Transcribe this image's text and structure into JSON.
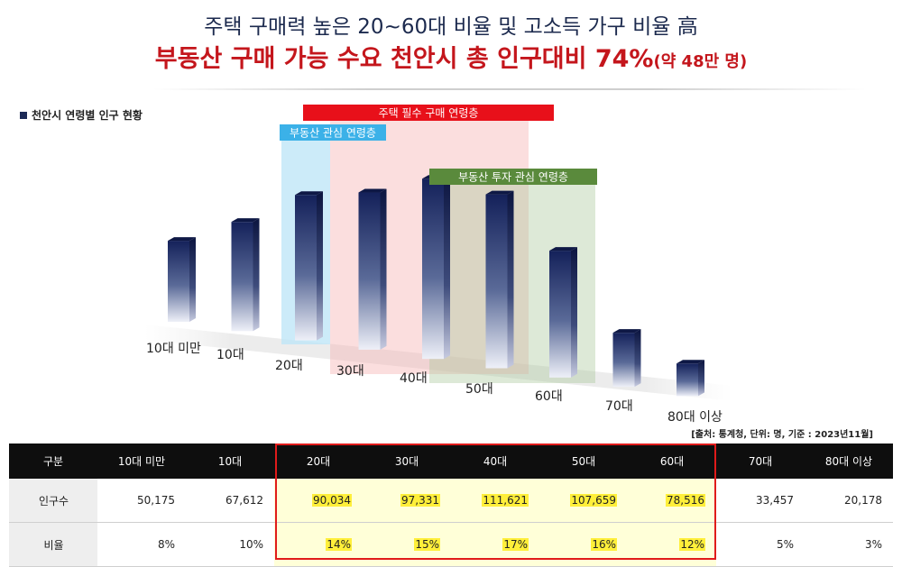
{
  "headline": {
    "line1": "주택 구매력 높은 20~60대 비율 및 고소득 가구 비율 高",
    "line2_main": "부동산 구매 가능 수요 천안시 총 인구대비 74%",
    "line2_sub": "(약 48만 명)"
  },
  "chart_data": {
    "type": "bar",
    "title": "천안시 연령별 인구 현황",
    "categories": [
      "10대 미만",
      "10대",
      "20대",
      "30대",
      "40대",
      "50대",
      "60대",
      "70대",
      "80대 이상"
    ],
    "series": [
      {
        "values": [
          50175,
          67612,
          90034,
          97331,
          111621,
          107659,
          78516,
          33457,
          20178
        ]
      }
    ],
    "ylim": [
      0,
      120000
    ],
    "grid": false,
    "annotations": [
      {
        "label": "주택 필수 구매 연령층",
        "categories": [
          "30대",
          "40대",
          "50대"
        ],
        "color": "#e8101a"
      },
      {
        "label": "부동산 관심 연령층",
        "categories": [
          "20대"
        ],
        "color": "#3bb1e8"
      },
      {
        "label": "부동산 투자 관심 연령층",
        "categories": [
          "40대",
          "50대",
          "60대"
        ],
        "color": "#5a8a3c"
      }
    ],
    "colors": {
      "bar_top": "#14215a",
      "bar_bottom": "#eef0f8"
    }
  },
  "source_note": "[출처: 통계청, 단위: 명, 기준 : 2023년11월]",
  "table": {
    "header": [
      "구분",
      "10대 미만",
      "10대",
      "20대",
      "30대",
      "40대",
      "50대",
      "60대",
      "70대",
      "80대 이상"
    ],
    "rows": [
      {
        "label": "인구수",
        "values": [
          "50,175",
          "67,612",
          "90,034",
          "97,331",
          "111,621",
          "107,659",
          "78,516",
          "33,457",
          "20,178"
        ]
      },
      {
        "label": "비율",
        "values": [
          "8%",
          "10%",
          "14%",
          "15%",
          "17%",
          "16%",
          "12%",
          "5%",
          "3%"
        ]
      }
    ],
    "highlight_color": "#ffef3a",
    "border_color": "#e01b1b"
  }
}
